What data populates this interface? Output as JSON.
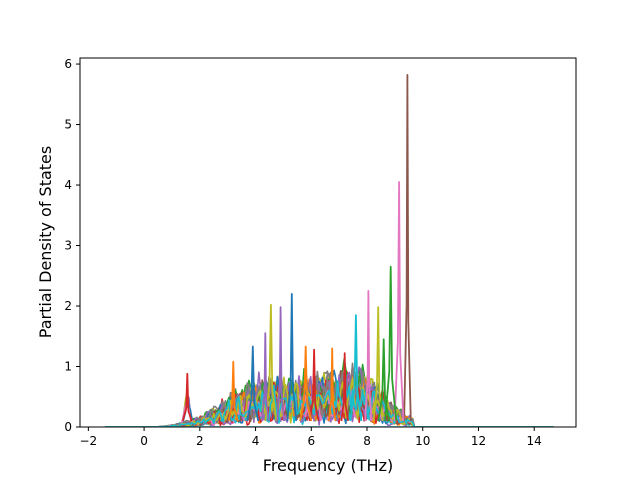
{
  "chart_data": {
    "type": "line",
    "title": "",
    "xlabel": "Frequency (THz)",
    "ylabel": "Partial Density of States",
    "xlim": [
      -2.3,
      15.5
    ],
    "ylim": [
      0,
      6.1
    ],
    "xticks": [
      -2,
      0,
      2,
      4,
      6,
      8,
      10,
      12,
      14
    ],
    "yticks": [
      0,
      1,
      2,
      3,
      4,
      5,
      6
    ],
    "grid": false,
    "legend": "none",
    "x_range_of_data": [
      -1.4,
      14.7
    ],
    "palette": [
      "#1f77b4",
      "#ff7f0e",
      "#2ca02c",
      "#d62728",
      "#9467bd",
      "#8c564b",
      "#e377c2",
      "#7f7f7f",
      "#bcbd22",
      "#17becf"
    ],
    "peaks": [
      {
        "x": 9.45,
        "y": 5.82,
        "color": "#8c564b"
      },
      {
        "x": 9.15,
        "y": 4.05,
        "color": "#e377c2"
      },
      {
        "x": 8.85,
        "y": 2.65,
        "color": "#2ca02c"
      },
      {
        "x": 8.05,
        "y": 2.25,
        "color": "#e377c2"
      },
      {
        "x": 5.3,
        "y": 2.2,
        "color": "#1f77b4"
      },
      {
        "x": 4.55,
        "y": 2.02,
        "color": "#bcbd22"
      },
      {
        "x": 4.9,
        "y": 1.98,
        "color": "#9467bd"
      },
      {
        "x": 8.4,
        "y": 1.98,
        "color": "#bcbd22"
      },
      {
        "x": 7.6,
        "y": 1.85,
        "color": "#17becf"
      },
      {
        "x": 4.35,
        "y": 1.55,
        "color": "#9467bd"
      },
      {
        "x": 1.55,
        "y": 0.88,
        "color": "#d62728"
      },
      {
        "x": 3.9,
        "y": 1.33,
        "color": "#1f77b4"
      },
      {
        "x": 6.75,
        "y": 1.3,
        "color": "#ff7f0e"
      },
      {
        "x": 6.1,
        "y": 1.28,
        "color": "#d62728"
      },
      {
        "x": 5.8,
        "y": 1.33,
        "color": "#ff7f0e"
      },
      {
        "x": 7.2,
        "y": 1.22,
        "color": "#d62728"
      },
      {
        "x": 3.2,
        "y": 1.08,
        "color": "#ff7f0e"
      },
      {
        "x": 8.6,
        "y": 1.45,
        "color": "#2ca02c"
      }
    ]
  }
}
